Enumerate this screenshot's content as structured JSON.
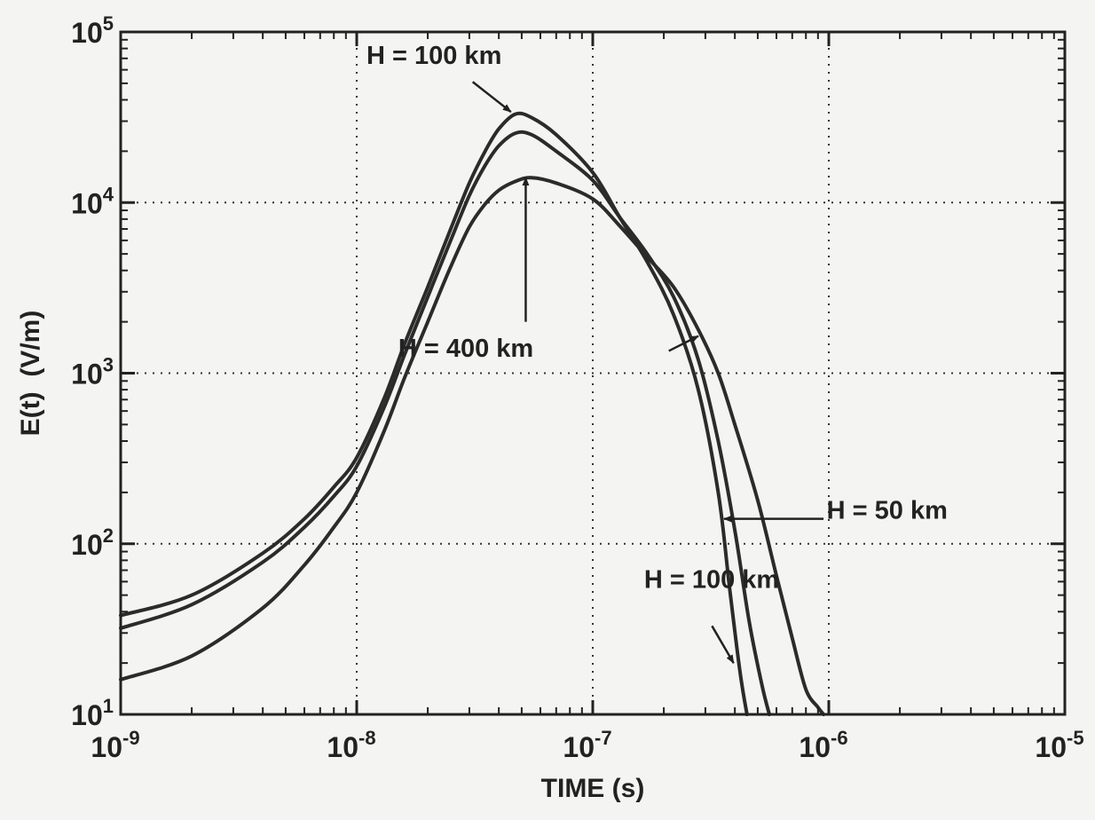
{
  "chart_data": {
    "type": "line",
    "xlabel": "TIME (s)",
    "ylabel": "E(t)  (V/m)",
    "xscale": "log",
    "yscale": "log",
    "xlim": [
      1e-09,
      1e-05
    ],
    "ylim": [
      10,
      100000
    ],
    "grid": true,
    "x_ticks": [
      {
        "base": "10",
        "exp": "-9",
        "value": 1e-09
      },
      {
        "base": "10",
        "exp": "-8",
        "value": 1e-08
      },
      {
        "base": "10",
        "exp": "-7",
        "value": 1e-07
      },
      {
        "base": "10",
        "exp": "-6",
        "value": 1e-06
      },
      {
        "base": "10",
        "exp": "-5",
        "value": 1e-05
      }
    ],
    "y_ticks": [
      {
        "base": "10",
        "exp": "1",
        "value": 10
      },
      {
        "base": "10",
        "exp": "2",
        "value": 100
      },
      {
        "base": "10",
        "exp": "3",
        "value": 1000
      },
      {
        "base": "10",
        "exp": "4",
        "value": 10000
      },
      {
        "base": "10",
        "exp": "5",
        "value": 100000
      }
    ],
    "series": [
      {
        "points": [
          [
            1e-09,
            38
          ],
          [
            2e-09,
            50
          ],
          [
            4e-09,
            88
          ],
          [
            6e-09,
            140
          ],
          [
            8e-09,
            215
          ],
          [
            1e-08,
            320
          ],
          [
            1.3e-08,
            700
          ],
          [
            1.6e-08,
            1500
          ],
          [
            2e-08,
            3200
          ],
          [
            2.5e-08,
            7000
          ],
          [
            3e-08,
            13000
          ],
          [
            3.5e-08,
            20000
          ],
          [
            4e-08,
            27000
          ],
          [
            4.7e-08,
            33000
          ],
          [
            5.5e-08,
            31500
          ],
          [
            7e-08,
            25000
          ],
          [
            1e-07,
            15000
          ],
          [
            1.3e-07,
            8200
          ],
          [
            1.7e-07,
            4500
          ],
          [
            2.2e-07,
            2200
          ],
          [
            2.8e-07,
            800
          ],
          [
            3.4e-07,
            200
          ],
          [
            3.8e-07,
            55
          ],
          [
            4.2e-07,
            18
          ],
          [
            4.5e-07,
            10
          ]
        ]
      },
      {
        "points": [
          [
            1e-09,
            32
          ],
          [
            2e-09,
            44
          ],
          [
            4e-09,
            78
          ],
          [
            6e-09,
            125
          ],
          [
            8e-09,
            190
          ],
          [
            1e-08,
            285
          ],
          [
            1.3e-08,
            620
          ],
          [
            1.6e-08,
            1300
          ],
          [
            2e-08,
            2800
          ],
          [
            2.5e-08,
            6000
          ],
          [
            3e-08,
            11000
          ],
          [
            3.5e-08,
            16500
          ],
          [
            4e-08,
            21500
          ],
          [
            4.7e-08,
            25500
          ],
          [
            5.5e-08,
            25000
          ],
          [
            7e-08,
            20000
          ],
          [
            1e-07,
            13500
          ],
          [
            1.3e-07,
            8200
          ],
          [
            1.7e-07,
            5000
          ],
          [
            2.2e-07,
            2800
          ],
          [
            2.8e-07,
            1200
          ],
          [
            3.4e-07,
            400
          ],
          [
            4e-07,
            120
          ],
          [
            4.6e-07,
            35
          ],
          [
            5.2e-07,
            15
          ],
          [
            5.6e-07,
            10
          ]
        ]
      },
      {
        "points": [
          [
            1e-09,
            16
          ],
          [
            2e-09,
            22
          ],
          [
            4e-09,
            42
          ],
          [
            6e-09,
            75
          ],
          [
            8e-09,
            125
          ],
          [
            1e-08,
            200
          ],
          [
            1.3e-08,
            450
          ],
          [
            1.6e-08,
            950
          ],
          [
            2e-08,
            2000
          ],
          [
            2.5e-08,
            4200
          ],
          [
            3e-08,
            7200
          ],
          [
            3.5e-08,
            9800
          ],
          [
            4e-08,
            11800
          ],
          [
            4.7e-08,
            13300
          ],
          [
            5.5e-08,
            14000
          ],
          [
            7e-08,
            13000
          ],
          [
            1e-07,
            10500
          ],
          [
            1.3e-07,
            7300
          ],
          [
            1.7e-07,
            4800
          ],
          [
            2.2e-07,
            3200
          ],
          [
            2.8e-07,
            1800
          ],
          [
            3.4e-07,
            1000
          ],
          [
            4e-07,
            500
          ],
          [
            5e-07,
            180
          ],
          [
            6e-07,
            65
          ],
          [
            7e-07,
            28
          ],
          [
            8e-07,
            14
          ],
          [
            9e-07,
            11
          ],
          [
            9.5e-07,
            10
          ]
        ]
      }
    ],
    "annotations": [
      {
        "text": "H = 100 km",
        "label_at": [
          1.1e-08,
          65000
        ],
        "arrow_from": [
          3.1e-08,
          51000
        ],
        "arrow_to": [
          4.5e-08,
          34000
        ]
      },
      {
        "text": "H = 400 km",
        "label_at": [
          1.5e-08,
          1250
        ],
        "arrow_from": [
          5.2e-08,
          2000
        ],
        "arrow_to": [
          5.2e-08,
          14000
        ]
      },
      {
        "text": "H = 50 km",
        "label_at": [
          9.8e-07,
          140
        ],
        "arrow_from": [
          9.5e-07,
          140
        ],
        "arrow_to": [
          3.6e-07,
          140
        ]
      },
      {
        "text": "H = 100 km",
        "label_at": [
          1.65e-07,
          55
        ],
        "arrow_from": [
          3.2e-07,
          33
        ],
        "arrow_to": [
          3.95e-07,
          20
        ]
      },
      {
        "text": "",
        "arrow_from": [
          2.1e-07,
          1350
        ],
        "arrow_to": [
          2.8e-07,
          1650
        ]
      }
    ]
  }
}
